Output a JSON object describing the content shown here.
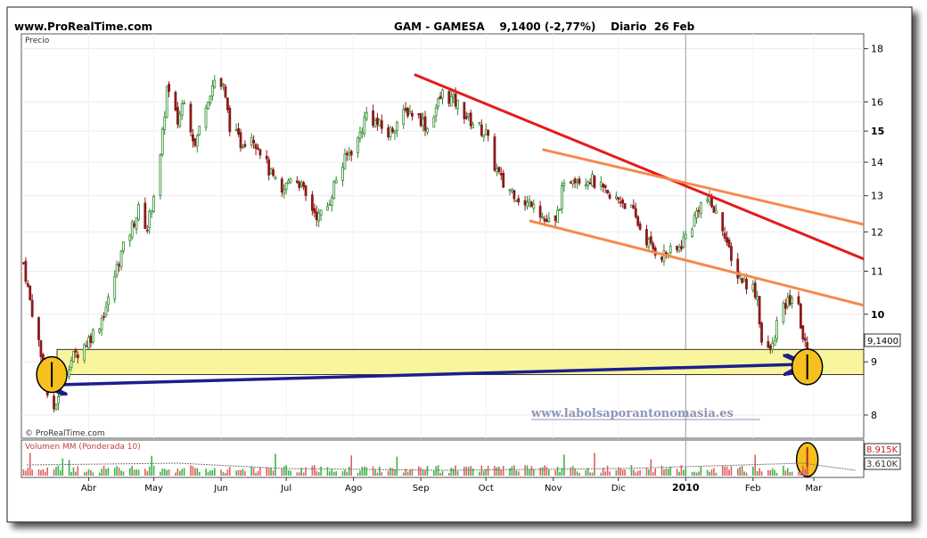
{
  "header": {
    "site": "www.ProRealTime.com",
    "title": "GAM - GAMESA    9,1400 (-2,77%)    Diario  26 Feb"
  },
  "price_panel": {
    "label": "Precio",
    "watermark": "© ProRealTime.com",
    "url": "www.labolsaporantonomasia.es",
    "last_price_badge": "9,1400"
  },
  "volume_panel": {
    "label": "Volumen MM (Ponderada 10)",
    "badge_high": "8.915K",
    "badge_low": "3.610K"
  },
  "chart_data": {
    "type": "candlestick",
    "title": "GAM - GAMESA",
    "y_scale": "log",
    "ylim": [
      7.6,
      18.6
    ],
    "y_ticks": [
      8,
      9,
      10,
      11,
      12,
      13,
      14,
      15,
      16,
      18
    ],
    "y_tick_labels": [
      "8",
      "9",
      "10",
      "11",
      "12",
      "13",
      "14",
      "15",
      "16",
      "18"
    ],
    "bold_ticks": [
      10,
      15
    ],
    "x_labels": [
      "Abr",
      "May",
      "Jun",
      "Jul",
      "Ago",
      "Sep",
      "Oct",
      "Nov",
      "Dic",
      "2010",
      "Feb",
      "Mar"
    ],
    "bold_x_labels": [
      "2010"
    ],
    "date_range": [
      "2009-03-01",
      "2010-02-26"
    ],
    "last_close": 9.14,
    "change_pct": -2.77,
    "price_path": [
      [
        "2009-03-02",
        11.2
      ],
      [
        "2009-03-05",
        10.3
      ],
      [
        "2009-03-09",
        9.4
      ],
      [
        "2009-03-12",
        8.5
      ],
      [
        "2009-03-16",
        8.0
      ],
      [
        "2009-03-20",
        8.8
      ],
      [
        "2009-03-25",
        9.1
      ],
      [
        "2009-03-31",
        9.4
      ],
      [
        "2009-04-06",
        9.8
      ],
      [
        "2009-04-10",
        10.3
      ],
      [
        "2009-04-15",
        11.3
      ],
      [
        "2009-04-20",
        12.0
      ],
      [
        "2009-04-24",
        12.6
      ],
      [
        "2009-04-28",
        12.1
      ],
      [
        "2009-05-04",
        14.1
      ],
      [
        "2009-05-07",
        16.5
      ],
      [
        "2009-05-12",
        15.3
      ],
      [
        "2009-05-15",
        16.2
      ],
      [
        "2009-05-20",
        14.5
      ],
      [
        "2009-05-25",
        16.0
      ],
      [
        "2009-05-29",
        16.8
      ],
      [
        "2009-06-02",
        16.5
      ],
      [
        "2009-06-05",
        15.2
      ],
      [
        "2009-06-10",
        14.6
      ],
      [
        "2009-06-15",
        14.9
      ],
      [
        "2009-06-19",
        14.4
      ],
      [
        "2009-06-24",
        13.6
      ],
      [
        "2009-06-29",
        13.0
      ],
      [
        "2009-07-03",
        13.6
      ],
      [
        "2009-07-07",
        13.4
      ],
      [
        "2009-07-11",
        12.8
      ],
      [
        "2009-07-16",
        12.4
      ],
      [
        "2009-07-20",
        12.7
      ],
      [
        "2009-07-24",
        13.5
      ],
      [
        "2009-07-29",
        14.2
      ],
      [
        "2009-08-03",
        14.7
      ],
      [
        "2009-08-07",
        15.6
      ],
      [
        "2009-08-11",
        15.3
      ],
      [
        "2009-08-17",
        14.9
      ],
      [
        "2009-08-21",
        15.3
      ],
      [
        "2009-08-26",
        15.7
      ],
      [
        "2009-08-31",
        15.5
      ],
      [
        "2009-09-04",
        15.1
      ],
      [
        "2009-09-08",
        15.8
      ],
      [
        "2009-09-11",
        16.3
      ],
      [
        "2009-09-15",
        16.1
      ],
      [
        "2009-09-18",
        15.9
      ],
      [
        "2009-09-23",
        15.4
      ],
      [
        "2009-09-28",
        15.1
      ],
      [
        "2009-10-01",
        14.9
      ],
      [
        "2009-10-05",
        13.9
      ],
      [
        "2009-10-09",
        13.3
      ],
      [
        "2009-10-14",
        13.1
      ],
      [
        "2009-10-19",
        12.7
      ],
      [
        "2009-10-23",
        12.9
      ],
      [
        "2009-10-28",
        12.3
      ],
      [
        "2009-11-02",
        12.2
      ],
      [
        "2009-11-05",
        13.1
      ],
      [
        "2009-11-10",
        13.6
      ],
      [
        "2009-11-13",
        13.5
      ],
      [
        "2009-11-18",
        13.5
      ],
      [
        "2009-11-23",
        13.2
      ],
      [
        "2009-11-27",
        12.9
      ],
      [
        "2009-12-02",
        12.9
      ],
      [
        "2009-12-07",
        12.6
      ],
      [
        "2009-12-11",
        12.1
      ],
      [
        "2009-12-16",
        11.6
      ],
      [
        "2009-12-21",
        11.4
      ],
      [
        "2009-12-28",
        11.5
      ],
      [
        "2010-01-04",
        12.2
      ],
      [
        "2010-01-07",
        12.7
      ],
      [
        "2010-01-11",
        12.9
      ],
      [
        "2010-01-14",
        12.6
      ],
      [
        "2010-01-19",
        12.0
      ],
      [
        "2010-01-22",
        11.2
      ],
      [
        "2010-01-27",
        10.8
      ],
      [
        "2010-02-01",
        10.6
      ],
      [
        "2010-02-03",
        10.4
      ],
      [
        "2010-02-05",
        9.4
      ],
      [
        "2010-02-08",
        9.2
      ],
      [
        "2010-02-10",
        9.3
      ],
      [
        "2010-02-12",
        9.8
      ],
      [
        "2010-02-16",
        10.2
      ],
      [
        "2010-02-19",
        10.4
      ],
      [
        "2010-02-22",
        10.1
      ],
      [
        "2010-02-24",
        9.5
      ],
      [
        "2010-02-26",
        9.14
      ]
    ],
    "support_zone": {
      "low": 8.75,
      "high": 9.25,
      "color": "#f9f59e"
    },
    "trendlines": [
      {
        "color": "#e31b1b",
        "from": [
          "2009-08-29",
          17.0
        ],
        "to": [
          "2010-03-24",
          11.3
        ]
      },
      {
        "color": "#f58a4b",
        "from": [
          "2009-10-27",
          14.4
        ],
        "to": [
          "2010-03-24",
          12.2
        ]
      },
      {
        "color": "#f58a4b",
        "from": [
          "2009-10-21",
          12.3
        ],
        "to": [
          "2010-03-24",
          10.2
        ]
      }
    ],
    "arrow": {
      "color": "#1b1f8c",
      "from": [
        "2009-03-14",
        8.55
      ],
      "to": [
        "2010-02-23",
        8.95
      ]
    },
    "circles": [
      [
        "2009-03-15",
        8.75
      ],
      [
        "2010-02-26",
        8.9
      ]
    ],
    "volume": {
      "levels": [
        8.915,
        3.61
      ],
      "unit": "K"
    },
    "colors": {
      "up": "#2e8b2e",
      "down": "#8b1a1a",
      "vol_up": "#3cb44b",
      "vol_down": "#e06060"
    }
  }
}
